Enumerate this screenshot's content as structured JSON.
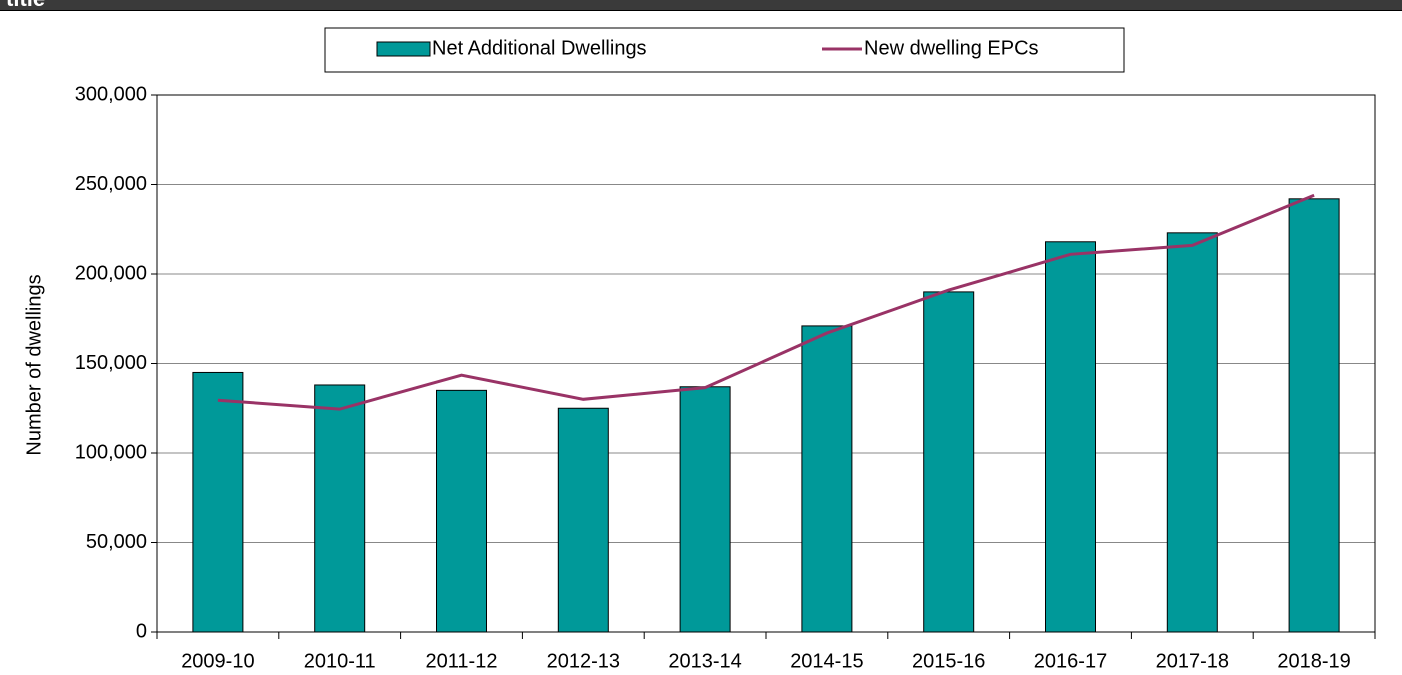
{
  "header": {
    "title": "title"
  },
  "chart_data": {
    "type": "bar_line",
    "ylabel": "Number of dwellings",
    "categories": [
      "2009-10",
      "2010-11",
      "2011-12",
      "2012-13",
      "2013-14",
      "2014-15",
      "2015-16",
      "2016-17",
      "2017-18",
      "2018-19"
    ],
    "series": [
      {
        "name": "Net Additional Dwellings",
        "type": "bar",
        "color": "#009999",
        "values": [
          145000,
          138000,
          135000,
          125000,
          137000,
          171000,
          190000,
          218000,
          223000,
          242000
        ]
      },
      {
        "name": "New dwelling EPCs",
        "type": "line",
        "color": "#993366",
        "values": [
          129500,
          124500,
          143500,
          130000,
          136500,
          167000,
          191000,
          211000,
          216000,
          244000
        ]
      }
    ],
    "ylim": [
      0,
      300000
    ],
    "yticks": [
      0,
      {
        "value": 50000,
        "label": "50,000"
      },
      {
        "value": 100000,
        "label": "100,000"
      },
      {
        "value": 150000,
        "label": "150,000"
      },
      {
        "value": 200000,
        "label": "200,000"
      },
      {
        "value": 250000,
        "label": "250,000"
      },
      {
        "value": 300000,
        "label": "300,000"
      }
    ],
    "grid": true,
    "legend": "top"
  }
}
